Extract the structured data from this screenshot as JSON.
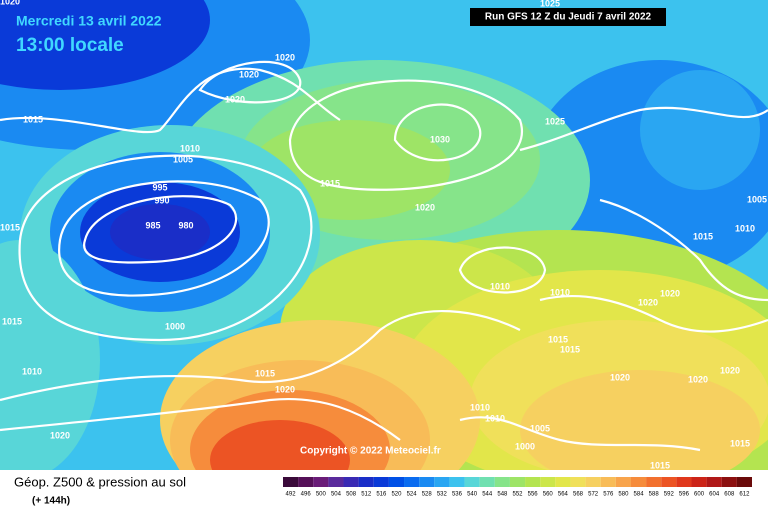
{
  "header": {
    "date": "Mercredi 13 avril 2022",
    "time": "13:00 locale",
    "run": "Run GFS 12 Z du Jeudi 7 avril 2022"
  },
  "map": {
    "copyright": "Copyright © 2022 Meteociel.fr",
    "isobar_labels": [
      "1025",
      "1020",
      "1020",
      "1020",
      "1020",
      "1015",
      "1010",
      "1005",
      "1030",
      "1025",
      "1015",
      "995",
      "990",
      "985",
      "980",
      "1020",
      "1015",
      "1010",
      "1015",
      "1005",
      "1010",
      "1010",
      "1020",
      "1020",
      "1015",
      "1000",
      "1015",
      "1015",
      "1010",
      "1015",
      "1020",
      "1020",
      "1020",
      "1020",
      "1010",
      "1010",
      "1005",
      "1020",
      "1000",
      "1015",
      "1015"
    ]
  },
  "legend": {
    "title": "Géop. Z500 & pression au sol",
    "subtitle": "(+ 144h)",
    "labels": [
      492,
      496,
      500,
      504,
      508,
      512,
      516,
      520,
      524,
      528,
      532,
      536,
      540,
      544,
      548,
      552,
      556,
      560,
      564,
      568,
      572,
      576,
      580,
      584,
      588,
      592,
      596,
      600,
      604,
      608,
      612
    ],
    "colors": [
      "#3a0a3a",
      "#551058",
      "#6a1c78",
      "#5a2a9c",
      "#3a2ab4",
      "#1a2ec8",
      "#0a3ad8",
      "#0050e6",
      "#0a6cf0",
      "#1a8af2",
      "#2aa6f2",
      "#3cc2ee",
      "#58d6d8",
      "#70e0b0",
      "#86e48a",
      "#9ee466",
      "#b4e450",
      "#cce64a",
      "#e2e64a",
      "#f0e05a",
      "#f6d060",
      "#f8bc58",
      "#f8a44c",
      "#f68c3c",
      "#f2702e",
      "#ec5424",
      "#e0381c",
      "#cc2418",
      "#b01818",
      "#8c1010",
      "#6a0a0a"
    ]
  }
}
